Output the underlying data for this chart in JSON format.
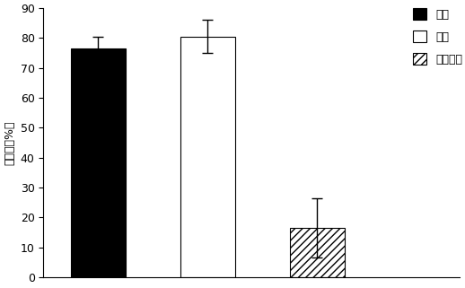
{
  "categories": [
    "人工",
    "蜜蜂",
    "空白对照"
  ],
  "values": [
    76.5,
    80.5,
    16.5
  ],
  "errors": [
    4.0,
    5.5,
    10.0
  ],
  "bar_colors": [
    "black",
    "white",
    "white"
  ],
  "bar_hatches": [
    "",
    "",
    "////"
  ],
  "bar_edgecolors": [
    "black",
    "black",
    "black"
  ],
  "ylabel": "坐果率（%）",
  "ylim": [
    0,
    90
  ],
  "yticks": [
    0,
    10,
    20,
    30,
    40,
    50,
    60,
    70,
    80,
    90
  ],
  "legend_labels": [
    "人工",
    "蜜蜂",
    "空白对照"
  ],
  "legend_colors": [
    "black",
    "white",
    "white"
  ],
  "legend_hatches": [
    "",
    "",
    "////"
  ],
  "background_color": "#ffffff",
  "bar_width": 0.5,
  "bar_positions": [
    0.5,
    1.5,
    2.5
  ],
  "xlim": [
    0,
    3.8
  ],
  "figsize": [
    5.18,
    3.21
  ],
  "dpi": 100
}
